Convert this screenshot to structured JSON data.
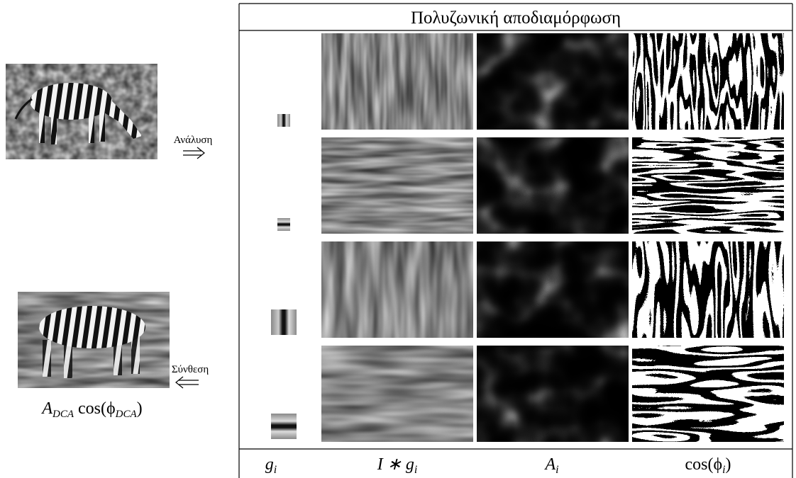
{
  "header": {
    "title": "Πολυζωνική αποδιαμόρφωση"
  },
  "labels": {
    "analysis": "Ανάλυση",
    "synthesis": "Σύνθεση"
  },
  "caption": {
    "main": "A",
    "sub": "DCA",
    "main2": " cos(ϕ",
    "sub2": "DCA",
    "tail": ")"
  },
  "footer": [
    {
      "main": "g",
      "sub": "i"
    },
    {
      "main": "I ∗ g",
      "sub": "i"
    },
    {
      "main": "A",
      "sub": "i"
    },
    {
      "main": "cos(ϕ",
      "sub": "i",
      "tail": ")"
    }
  ]
}
